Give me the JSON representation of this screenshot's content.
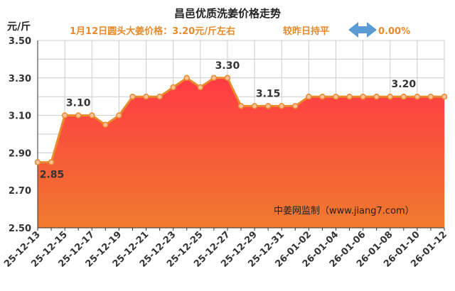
{
  "chart_data": {
    "type": "area",
    "title": "昌邑优质洗姜价格走势",
    "subtitle_left": "1月12日圆头大姜价格：3.20元/斤左右",
    "subtitle_right": "较昨日持平",
    "change": "0.00%",
    "ylabel": "元/斤",
    "ylim": [
      2.5,
      3.5
    ],
    "yticks": [
      "3.50",
      "3.30",
      "3.10",
      "2.90",
      "2.70",
      "2.50"
    ],
    "x": [
      "25-12-13",
      "25-12-14",
      "25-12-15",
      "25-12-16",
      "25-12-17",
      "25-12-18",
      "25-12-19",
      "25-12-20",
      "25-12-21",
      "25-12-22",
      "25-12-23",
      "25-12-24",
      "25-12-25",
      "25-12-26",
      "25-12-27",
      "25-12-28",
      "25-12-29",
      "25-12-30",
      "25-12-31",
      "26-01-01",
      "26-01-02",
      "26-01-03",
      "26-01-04",
      "26-01-05",
      "26-01-06",
      "26-01-07",
      "26-01-08",
      "26-01-09",
      "26-01-10",
      "26-01-11",
      "26-01-12"
    ],
    "xtick_labels": [
      "25-12-13",
      "25-12-15",
      "25-12-17",
      "25-12-19",
      "25-12-21",
      "25-12-23",
      "25-12-25",
      "25-12-27",
      "25-12-29",
      "25-12-31",
      "26-01-02",
      "26-01-04",
      "26-01-06",
      "26-01-08",
      "26-01-10",
      "26-01-12"
    ],
    "values": [
      2.85,
      2.85,
      3.1,
      3.1,
      3.1,
      3.05,
      3.1,
      3.2,
      3.2,
      3.2,
      3.25,
      3.3,
      3.25,
      3.3,
      3.3,
      3.15,
      3.15,
      3.15,
      3.15,
      3.15,
      3.2,
      3.2,
      3.2,
      3.2,
      3.2,
      3.2,
      3.2,
      3.2,
      3.2,
      3.2,
      3.2
    ],
    "annotations": [
      {
        "index": 0,
        "text": "2.85",
        "position": "below"
      },
      {
        "index": 3,
        "text": "3.10",
        "position": "above"
      },
      {
        "index": 14,
        "text": "3.30",
        "position": "above"
      },
      {
        "index": 17,
        "text": "3.15",
        "position": "above"
      },
      {
        "index": 27,
        "text": "3.20",
        "position": "above"
      }
    ],
    "grid": true,
    "watermark": "中姜网监制（www.jiang7.com）",
    "colors": {
      "line": "#e88a2c",
      "marker_fill": "#f7c29a",
      "area_top": "#ff3a44",
      "area_bottom": "#f07a2e",
      "subtitle": "#e88a2c",
      "arrow": "#5b9bd5",
      "grid": "#cccccc"
    }
  }
}
